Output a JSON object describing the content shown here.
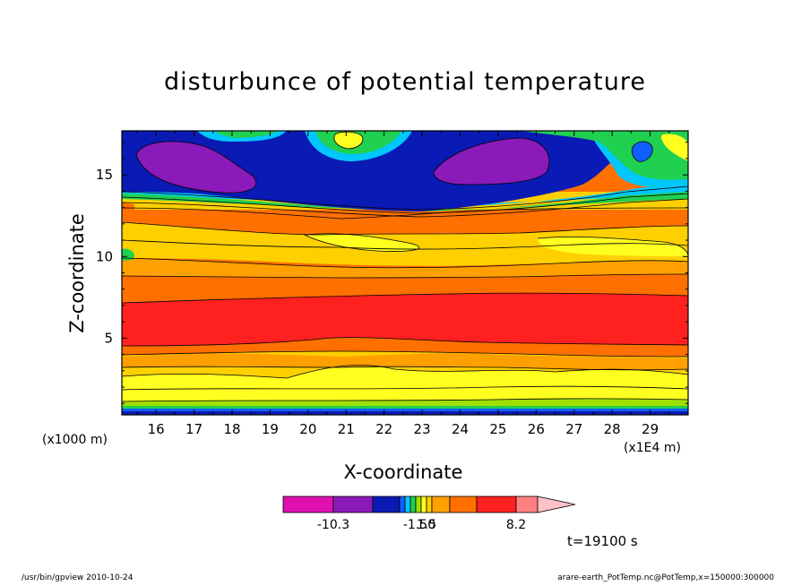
{
  "chart_data": {
    "type": "heatmap",
    "title": "disturbunce of potential temperature",
    "xlabel": "X-coordinate",
    "ylabel": "Z-coordinate",
    "x_unit_note": "(x1000 m)",
    "x_unit_note_right": "(x1E4 m)",
    "x_range": [
      15.1,
      30.0
    ],
    "y_range": [
      0.3,
      17.7
    ],
    "x_ticks": [
      "16",
      "17",
      "18",
      "19",
      "20",
      "21",
      "22",
      "23",
      "24",
      "25",
      "26",
      "27",
      "28",
      "29"
    ],
    "y_ticks": [
      "5",
      "10",
      "15"
    ],
    "x_tick_values": [
      16,
      17,
      18,
      19,
      20,
      21,
      22,
      23,
      24,
      25,
      26,
      27,
      28,
      29
    ],
    "y_tick_values": [
      5,
      10,
      15
    ],
    "colorbar": {
      "colors": [
        "#e010b0",
        "#8a1aba",
        "#0a1ab4",
        "#1060ff",
        "#00c8ff",
        "#20d050",
        "#a0e000",
        "#ffff20",
        "#ffd000",
        "#ffa000",
        "#ff7000",
        "#ff2020",
        "#ff8080",
        "#ffc0c8"
      ],
      "labels": [
        "-10.3",
        "-1.50",
        "1.5",
        "8.2"
      ]
    },
    "time_label": "t=19100 s"
  },
  "footer": {
    "left": "/usr/bin/gpview   2010-10-24",
    "right": "arare-earth_PotTemp.nc@PotTemp,x=150000:300000"
  },
  "colors": {
    "magenta": "#e010b0",
    "purple": "#8a1aba",
    "navy": "#0a1ab4",
    "blue": "#1060ff",
    "cyan": "#00c8ff",
    "green": "#20d050",
    "lime": "#a0e000",
    "yellow": "#ffff20",
    "gold": "#ffd000",
    "orange_light": "#ffa000",
    "orange": "#ff7000",
    "red": "#ff2020",
    "pink": "#ff8080"
  }
}
